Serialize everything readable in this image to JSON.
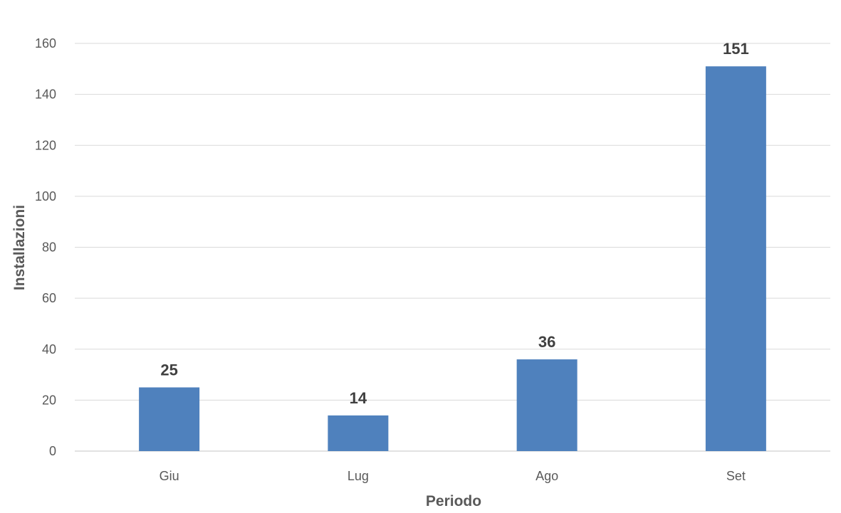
{
  "chart_data": {
    "type": "bar",
    "title": "",
    "xlabel": "Periodo",
    "ylabel": "Installazioni",
    "categories": [
      "Giu",
      "Lug",
      "Ago",
      "Set"
    ],
    "series": [
      {
        "values": [
          25,
          14,
          36,
          151
        ],
        "color": "#4F81BD"
      }
    ],
    "ylim": [
      0,
      160
    ],
    "yticks": [
      0,
      20,
      40,
      60,
      80,
      100,
      120,
      140,
      160
    ],
    "grid": true,
    "legend": "none",
    "data_labels": true,
    "colors": {
      "bar": "#4F81BD",
      "grid": "#D9D9D9",
      "axis": "#D9D9D9",
      "tick_text": "#595959",
      "label_text": "#404040"
    }
  }
}
